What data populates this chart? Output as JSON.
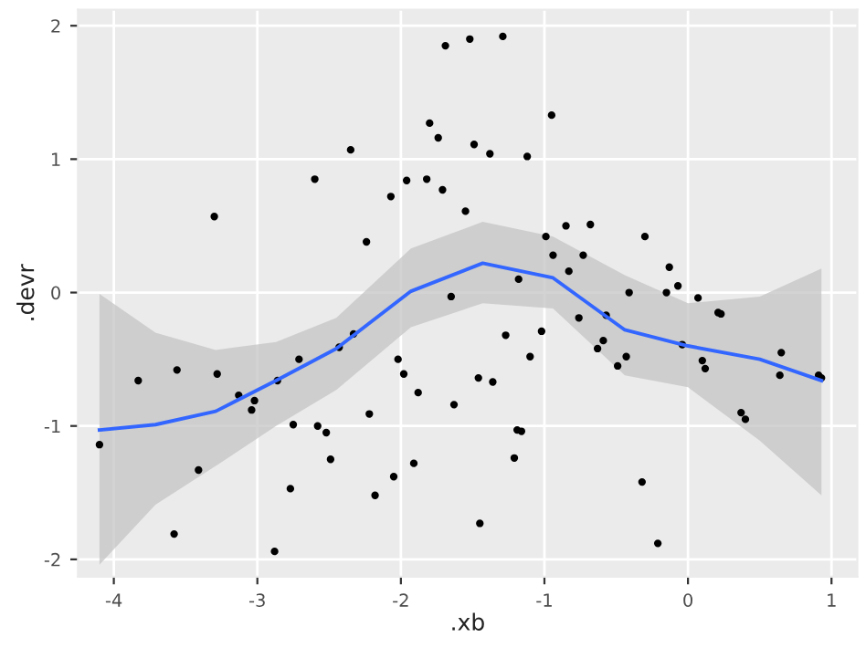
{
  "chart_data": {
    "type": "scatter",
    "xlabel": ".xb",
    "ylabel": ".devr",
    "xlim": [
      -4.25,
      1.18
    ],
    "ylim": [
      -2.13,
      2.12
    ],
    "xticks": [
      -4,
      -3,
      -2,
      -1,
      0,
      1
    ],
    "yticks": [
      -2,
      -1,
      0,
      1,
      2
    ],
    "grid": true,
    "series": [
      {
        "color": "#000000",
        "marker": "circle",
        "x": [
          -4.1,
          -3.83,
          -3.58,
          -3.56,
          -3.41,
          -3.3,
          -3.28,
          -3.13,
          -3.04,
          -3.02,
          -2.88,
          -2.86,
          -2.77,
          -2.75,
          -2.71,
          -2.6,
          -2.58,
          -2.52,
          -2.49,
          -2.43,
          -2.35,
          -2.33,
          -2.24,
          -2.22,
          -2.18,
          -2.07,
          -2.05,
          -2.02,
          -1.98,
          -1.96,
          -1.91,
          -1.88,
          -1.82,
          -1.8,
          -1.74,
          -1.71,
          -1.69,
          -1.65,
          -1.63,
          -1.55,
          -1.52,
          -1.49,
          -1.46,
          -1.45,
          -1.38,
          -1.36,
          -1.29,
          -1.27,
          -1.21,
          -1.19,
          -1.16,
          -1.18,
          -1.12,
          -1.1,
          -1.02,
          -0.99,
          -0.95,
          -0.94,
          -0.85,
          -0.83,
          -0.76,
          -0.73,
          -0.68,
          -0.63,
          -0.59,
          -0.57,
          -0.49,
          -0.43,
          -0.41,
          -0.32,
          -0.3,
          -0.21,
          -0.15,
          -0.13,
          -0.07,
          -0.04,
          0.07,
          0.1,
          0.12,
          0.21,
          0.23,
          0.37,
          0.4,
          0.64,
          0.65,
          0.91,
          0.93
        ],
        "values": [
          -1.14,
          -0.66,
          -1.81,
          -0.58,
          -1.33,
          0.57,
          -0.61,
          -0.77,
          -0.88,
          -0.81,
          -1.94,
          -0.66,
          -1.47,
          -0.99,
          -0.5,
          0.85,
          -1.0,
          -1.05,
          -1.25,
          -0.41,
          1.07,
          -0.31,
          0.38,
          -0.91,
          -1.52,
          0.72,
          -1.38,
          -0.5,
          -0.61,
          0.84,
          -1.28,
          -0.75,
          0.85,
          1.27,
          1.16,
          0.77,
          1.85,
          -0.03,
          -0.84,
          0.61,
          1.9,
          1.11,
          -0.64,
          -1.73,
          1.04,
          -0.67,
          1.92,
          -0.32,
          -1.24,
          -1.03,
          -1.04,
          0.1,
          1.02,
          -0.48,
          -0.29,
          0.42,
          1.33,
          0.28,
          0.5,
          0.16,
          -0.19,
          0.28,
          0.51,
          -0.42,
          -0.36,
          -0.17,
          -0.55,
          -0.48,
          0.0,
          -1.42,
          0.42,
          -1.88,
          0.0,
          0.19,
          0.05,
          -0.39,
          -0.04,
          -0.51,
          -0.57,
          -0.15,
          -0.16,
          -0.9,
          -0.95,
          -0.62,
          -0.45,
          -0.62,
          -0.64
        ]
      },
      {
        "type": "line",
        "color": "#3366ff",
        "marker": "none",
        "x": [
          -4.1,
          -3.71,
          -3.29,
          -2.87,
          -2.45,
          -1.93,
          -1.43,
          -0.94,
          -0.44,
          0.0,
          0.5,
          0.93
        ],
        "values": [
          -1.03,
          -0.99,
          -0.89,
          -0.66,
          -0.42,
          0.01,
          0.22,
          0.11,
          -0.28,
          -0.4,
          -0.5,
          -0.66
        ],
        "lower": [
          -2.04,
          -1.59,
          -1.3,
          -1.0,
          -0.73,
          -0.26,
          -0.08,
          -0.12,
          -0.62,
          -0.71,
          -1.11,
          -1.52
        ],
        "upper": [
          -0.01,
          -0.3,
          -0.43,
          -0.37,
          -0.19,
          0.33,
          0.53,
          0.42,
          0.13,
          -0.08,
          -0.03,
          0.18
        ]
      }
    ]
  }
}
